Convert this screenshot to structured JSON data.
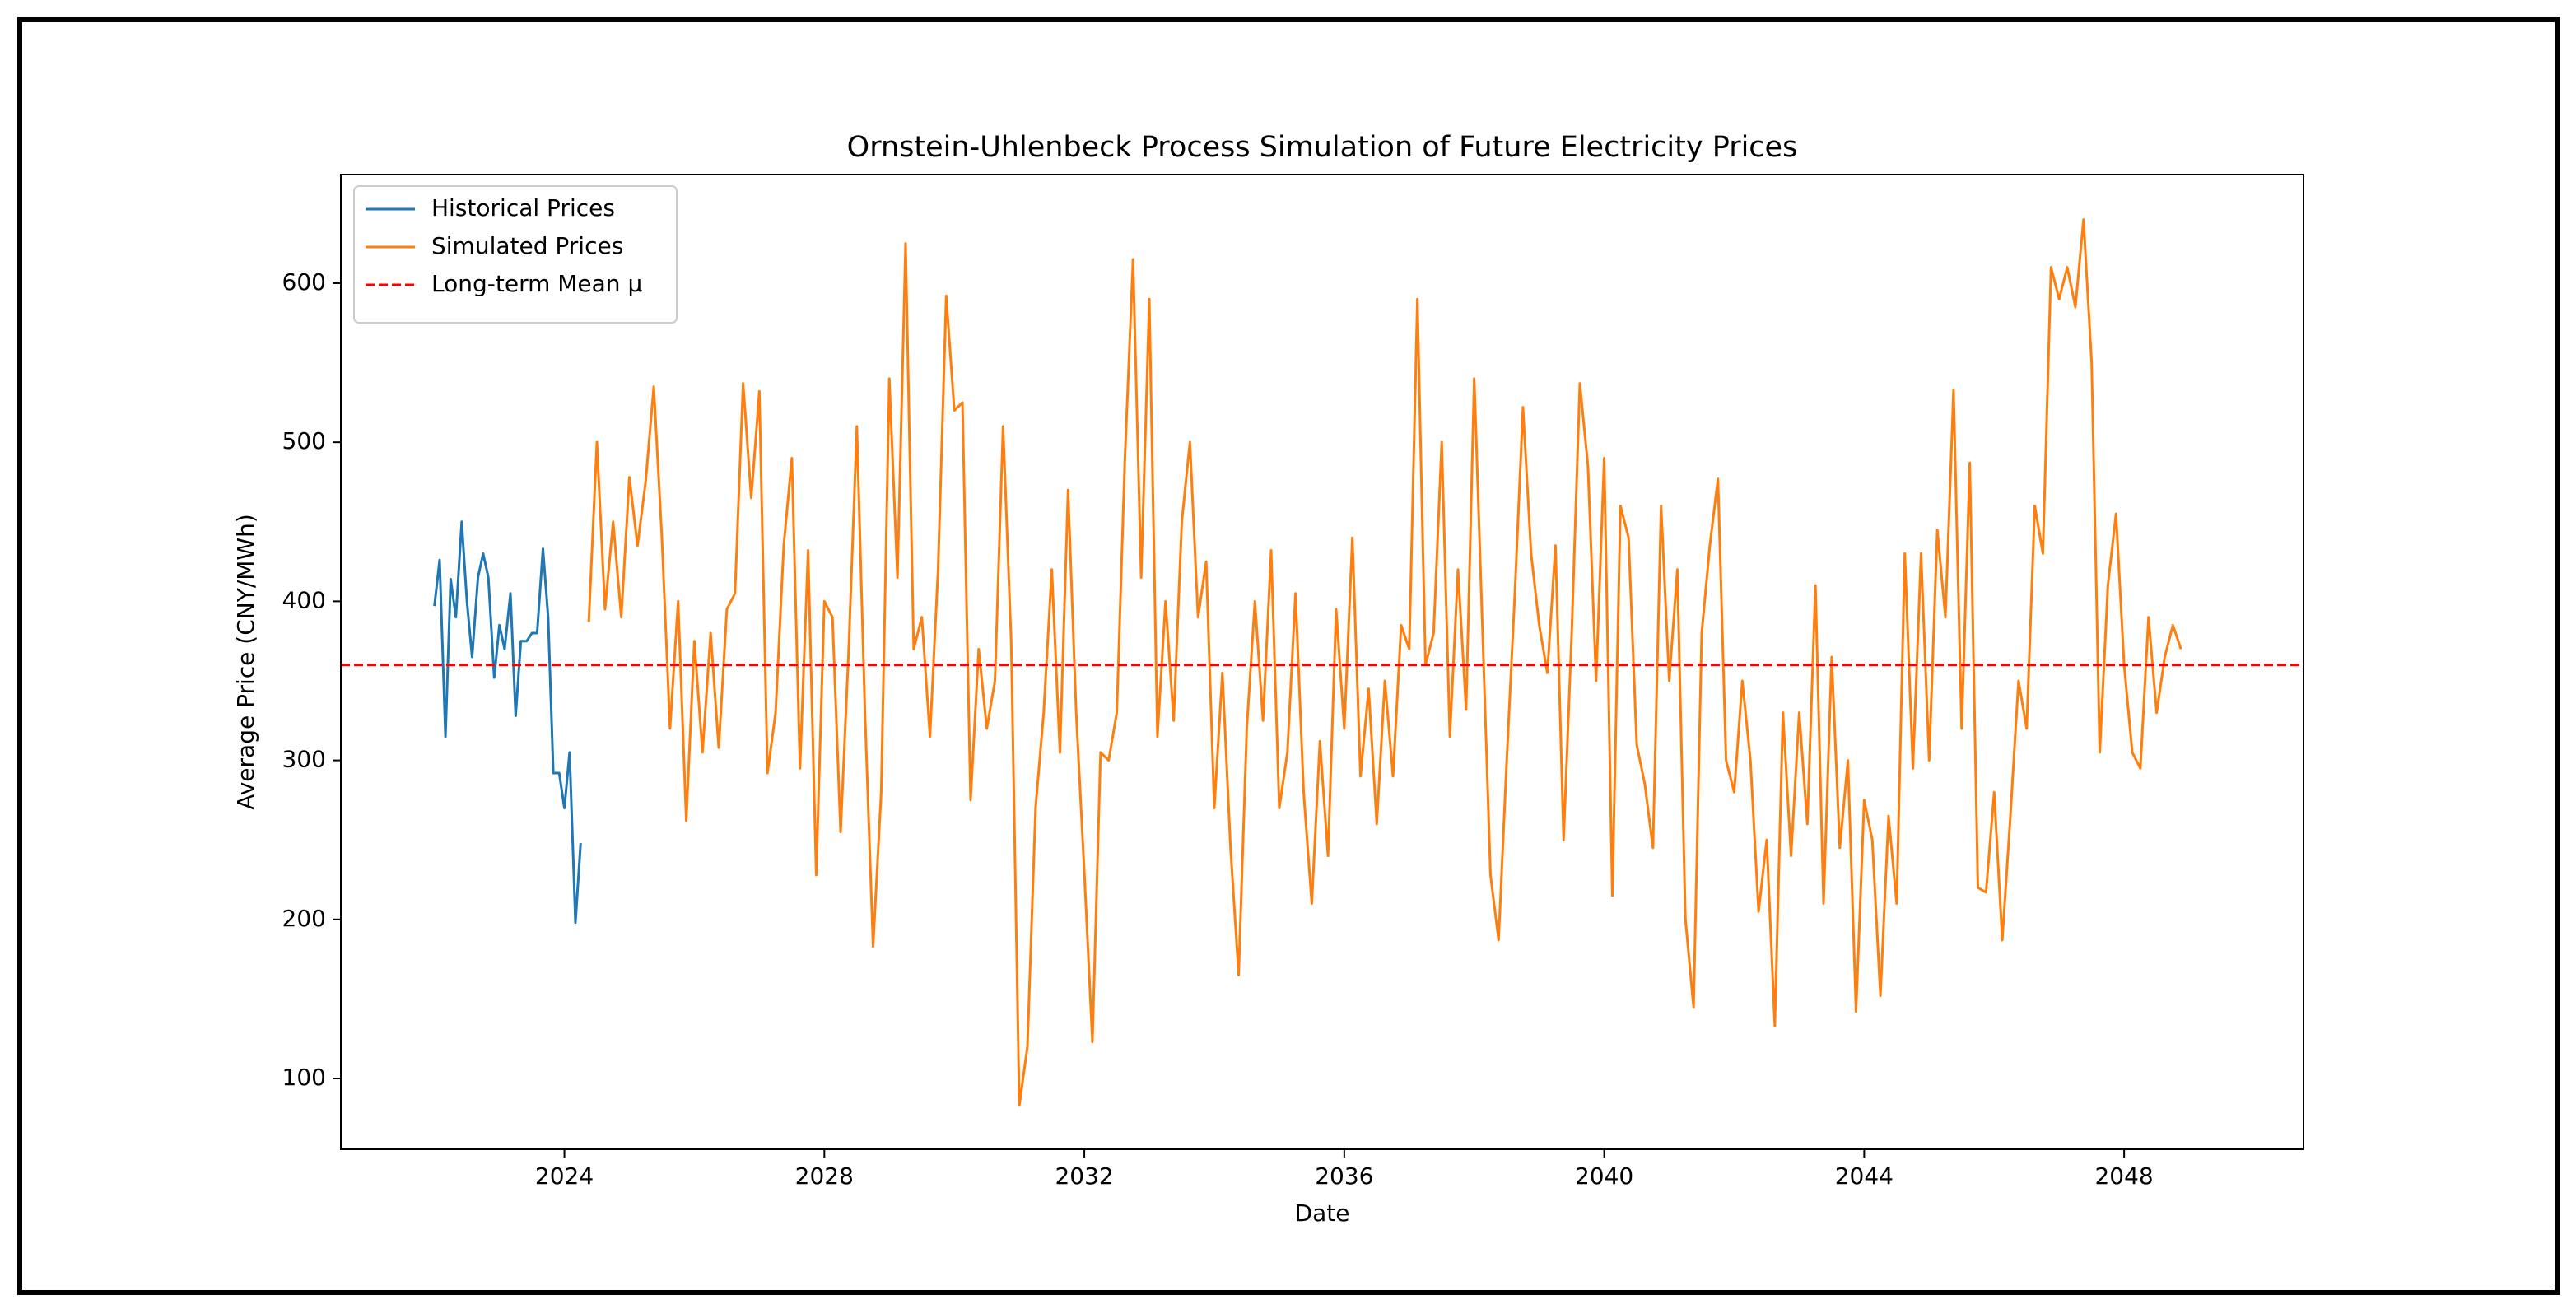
{
  "chart_data": {
    "type": "line",
    "title": "Ornstein-Uhlenbeck Process Simulation of Future Electricity Prices",
    "xlabel": "Date",
    "ylabel": "Average Price (CNY/MWh)",
    "xlim": [
      2020.56,
      2050.76
    ],
    "ylim": [
      55.5,
      668.3
    ],
    "xticks": [
      2024,
      2028,
      2032,
      2036,
      2040,
      2044,
      2048
    ],
    "yticks": [
      100,
      200,
      300,
      400,
      500,
      600
    ],
    "grid": false,
    "legend": "upper left",
    "series": [
      {
        "name": "Historical Prices",
        "color": "#1f77b4",
        "x": [
          2022.0,
          2022.08,
          2022.17,
          2022.25,
          2022.33,
          2022.42,
          2022.5,
          2022.58,
          2022.67,
          2022.75,
          2022.83,
          2022.92,
          2023.0,
          2023.08,
          2023.17,
          2023.25,
          2023.33,
          2023.42,
          2023.5,
          2023.58,
          2023.67,
          2023.75,
          2023.83,
          2023.92,
          2024.0,
          2024.08,
          2024.17,
          2024.25
        ],
        "values": [
          397,
          426,
          315,
          414,
          390,
          450,
          400,
          365,
          415,
          430,
          415,
          352,
          385,
          370,
          405,
          328,
          375,
          375,
          380,
          380,
          433,
          390,
          292,
          292,
          270,
          305,
          198,
          248
        ]
      },
      {
        "name": "Simulated Prices",
        "color": "#ff7f0e",
        "x": [
          2024.375,
          2024.5,
          2024.625,
          2024.75,
          2024.875,
          2025,
          2025.125,
          2025.25,
          2025.375,
          2025.5,
          2025.625,
          2025.75,
          2025.875,
          2026,
          2026.125,
          2026.25,
          2026.375,
          2026.5,
          2026.625,
          2026.75,
          2026.875,
          2027,
          2027.125,
          2027.25,
          2027.375,
          2027.5,
          2027.625,
          2027.75,
          2027.875,
          2028,
          2028.125,
          2028.25,
          2028.375,
          2028.5,
          2028.625,
          2028.75,
          2028.875,
          2029,
          2029.125,
          2029.25,
          2029.375,
          2029.5,
          2029.625,
          2029.75,
          2029.875,
          2030,
          2030.125,
          2030.25,
          2030.375,
          2030.5,
          2030.625,
          2030.75,
          2030.875,
          2031,
          2031.125,
          2031.25,
          2031.375,
          2031.5,
          2031.625,
          2031.75,
          2031.875,
          2032,
          2032.125,
          2032.25,
          2032.375,
          2032.5,
          2032.625,
          2032.75,
          2032.875,
          2033,
          2033.125,
          2033.25,
          2033.375,
          2033.5,
          2033.625,
          2033.75,
          2033.875,
          2034,
          2034.125,
          2034.25,
          2034.375,
          2034.5,
          2034.625,
          2034.75,
          2034.875,
          2035,
          2035.125,
          2035.25,
          2035.375,
          2035.5,
          2035.625,
          2035.75,
          2035.875,
          2036,
          2036.125,
          2036.25,
          2036.375,
          2036.5,
          2036.625,
          2036.75,
          2036.875,
          2037,
          2037.125,
          2037.25,
          2037.375,
          2037.5,
          2037.625,
          2037.75,
          2037.875,
          2038,
          2038.125,
          2038.25,
          2038.375,
          2038.5,
          2038.625,
          2038.75,
          2038.875,
          2039,
          2039.125,
          2039.25,
          2039.375,
          2039.5,
          2039.625,
          2039.75,
          2039.875,
          2040,
          2040.125,
          2040.25,
          2040.375,
          2040.5,
          2040.625,
          2040.75,
          2040.875,
          2041,
          2041.125,
          2041.25,
          2041.375,
          2041.5,
          2041.625,
          2041.75,
          2041.875,
          2042,
          2042.125,
          2042.25,
          2042.375,
          2042.5,
          2042.625,
          2042.75,
          2042.875,
          2043,
          2043.125,
          2043.25,
          2043.375,
          2043.5,
          2043.625,
          2043.75,
          2043.875,
          2044,
          2044.125,
          2044.25,
          2044.375,
          2044.5,
          2044.625,
          2044.75,
          2044.875,
          2045,
          2045.125,
          2045.25,
          2045.375,
          2045.5,
          2045.625,
          2045.75,
          2045.875,
          2046,
          2046.125,
          2046.25,
          2046.375,
          2046.5,
          2046.625,
          2046.75,
          2046.875,
          2047,
          2047.125,
          2047.25,
          2047.375,
          2047.5,
          2047.625,
          2047.75,
          2047.875,
          2048,
          2048.125,
          2048.25,
          2048.375,
          2048.5,
          2048.625,
          2048.75,
          2048.875
        ],
        "values": [
          387,
          500,
          395,
          450,
          390,
          478,
          435,
          475,
          535,
          440,
          320,
          400,
          262,
          375,
          305,
          380,
          308,
          395,
          405,
          537,
          465,
          532,
          292,
          330,
          435,
          490,
          295,
          432,
          228,
          400,
          390,
          255,
          370,
          510,
          330,
          183,
          280,
          540,
          415,
          625,
          370,
          390,
          315,
          420,
          592,
          520,
          525,
          275,
          370,
          320,
          350,
          510,
          375,
          83,
          120,
          270,
          330,
          420,
          305,
          470,
          330,
          230,
          123,
          305,
          300,
          330,
          490,
          615,
          415,
          590,
          315,
          400,
          325,
          450,
          500,
          390,
          425,
          270,
          355,
          245,
          165,
          320,
          400,
          325,
          432,
          270,
          305,
          405,
          280,
          210,
          312,
          240,
          395,
          320,
          440,
          290,
          345,
          260,
          350,
          290,
          385,
          370,
          590,
          360,
          380,
          500,
          315,
          420,
          332,
          540,
          385,
          228,
          187,
          300,
          405,
          522,
          430,
          385,
          355,
          435,
          250,
          380,
          537,
          485,
          350,
          490,
          215,
          460,
          440,
          310,
          285,
          245,
          460,
          350,
          420,
          200,
          145,
          380,
          435,
          477,
          300,
          280,
          350,
          300,
          205,
          250,
          133,
          330,
          240,
          330,
          260,
          410,
          210,
          365,
          245,
          300,
          142,
          275,
          250,
          152,
          265,
          210,
          430,
          295,
          430,
          300,
          445,
          390,
          533,
          320,
          487,
          220,
          217,
          280,
          187,
          265,
          350,
          320,
          460,
          430,
          610,
          590,
          610,
          585,
          640,
          550,
          305,
          410,
          455,
          360,
          305,
          295,
          390,
          330,
          365,
          385,
          370
        ]
      },
      {
        "name": "Long-term Mean μ",
        "color": "#ff0000",
        "linestyle": "dashed",
        "value": 360
      }
    ]
  }
}
